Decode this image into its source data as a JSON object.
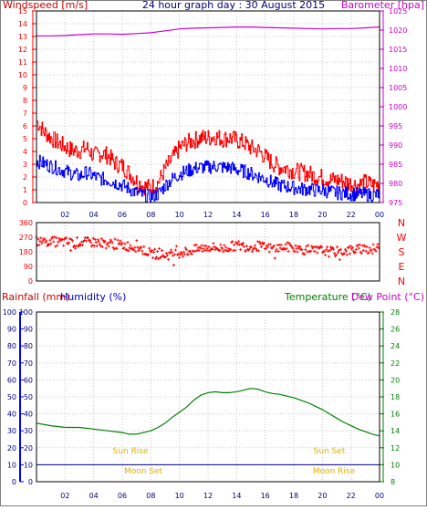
{
  "header": {
    "windspeed_label": "Windspeed [m/s]",
    "graph_title": "24 hour graph day : 30 August 2015",
    "barometer_label": "Barometer [hpa]"
  },
  "colors": {
    "wind_gust": "#ff0000",
    "wind_avg": "#0000ff",
    "barometer": "#cc00cc",
    "wind_dir": "#ff0000",
    "rain": "#0000ff",
    "humidity": "#0000ff",
    "temperature": "#008000",
    "dew_point": "#008000",
    "sun_moon": "#e0b000",
    "axis_dark": "#000000",
    "rainfall_title": "#cc0000"
  },
  "lower_panel": {
    "rainfall_label": "Rainfall (mm)",
    "humidity_label": "Humidity (%)",
    "temperature_label": "Temperature (°C)",
    "dew_point_label": "Dew Point (°C)",
    "sun_rise": "Sun Rise",
    "sun_set": "Sun Set",
    "moon_set": "Moon Set",
    "moon_rise": "Moon Rise"
  },
  "chart_data": [
    {
      "type": "line",
      "id": "wind",
      "x_labels": [
        "02",
        "04",
        "06",
        "08",
        "10",
        "12",
        "14",
        "16",
        "18",
        "20",
        "22",
        "00"
      ],
      "ylim_left": [
        0,
        15
      ],
      "y_ticks_left": [
        0,
        1,
        2,
        3,
        4,
        5,
        6,
        7,
        8,
        9,
        10,
        11,
        12,
        13,
        14,
        15
      ],
      "ylim_right": [
        975,
        1025
      ],
      "y_ticks_right": [
        975,
        980,
        985,
        990,
        995,
        1000,
        1005,
        1010,
        1015,
        1020,
        1025
      ],
      "grid": true,
      "series": [
        {
          "name": "Windspeed [m/s]",
          "axis": "left",
          "style": "gust",
          "x": [
            0,
            0.5,
            1,
            1.5,
            2,
            2.5,
            3,
            3.5,
            4,
            4.5,
            5,
            5.5,
            6,
            6.5,
            7,
            7.5,
            8,
            8.5,
            9,
            9.5,
            10,
            10.5,
            11,
            11.5,
            12,
            12.5,
            13,
            13.5,
            14,
            14.5,
            15,
            15.5,
            16,
            16.5,
            17,
            17.5,
            18,
            18.5,
            19,
            19.5,
            20,
            20.5,
            21,
            21.5,
            22,
            22.5,
            23,
            23.5,
            24
          ],
          "values": [
            6.3,
            5.5,
            5.0,
            4.6,
            4.3,
            4.0,
            4.0,
            4.2,
            3.6,
            3.8,
            3.6,
            3.0,
            2.8,
            2.2,
            1.6,
            1.2,
            1.1,
            1.5,
            2.6,
            3.4,
            4.2,
            4.6,
            4.8,
            5.0,
            5.0,
            5.1,
            4.9,
            5.0,
            4.8,
            4.6,
            4.2,
            4.0,
            3.5,
            3.0,
            2.7,
            2.6,
            2.4,
            2.3,
            2.2,
            2.0,
            1.9,
            1.7,
            1.7,
            1.6,
            1.4,
            1.3,
            1.5,
            1.3,
            1.4
          ]
        },
        {
          "name": "Windspeed [m/s]",
          "axis": "left",
          "style": "average",
          "x": [
            0,
            0.5,
            1,
            1.5,
            2,
            2.5,
            3,
            3.5,
            4,
            4.5,
            5,
            5.5,
            6,
            6.5,
            7,
            7.5,
            8,
            8.5,
            9,
            9.5,
            10,
            10.5,
            11,
            11.5,
            12,
            12.5,
            13,
            13.5,
            14,
            14.5,
            15,
            15.5,
            16,
            16.5,
            17,
            17.5,
            18,
            18.5,
            19,
            19.5,
            20,
            20.5,
            21,
            21.5,
            22,
            22.5,
            23,
            23.5,
            24
          ],
          "values": [
            3.2,
            3.0,
            2.8,
            2.6,
            2.4,
            2.2,
            2.0,
            2.3,
            2.0,
            1.8,
            1.7,
            1.5,
            1.3,
            1.0,
            0.7,
            0.5,
            0.4,
            0.6,
            1.3,
            1.8,
            2.2,
            2.4,
            2.6,
            2.7,
            2.7,
            2.8,
            2.7,
            2.7,
            2.5,
            2.4,
            2.2,
            2.0,
            1.8,
            1.5,
            1.3,
            1.2,
            1.1,
            1.0,
            1.0,
            0.9,
            0.9,
            0.8,
            0.7,
            0.7,
            0.6,
            0.6,
            0.6,
            0.5,
            0.6
          ]
        },
        {
          "name": "Barometer [hpa]",
          "axis": "right",
          "style": "barometer",
          "x": [
            0,
            1,
            2,
            3,
            4,
            5,
            6,
            7,
            8,
            9,
            10,
            11,
            12,
            13,
            14,
            15,
            16,
            17,
            18,
            19,
            20,
            21,
            22,
            23,
            24
          ],
          "values": [
            1018.5,
            1018.5,
            1018.6,
            1018.8,
            1019.0,
            1019.0,
            1018.9,
            1019.1,
            1019.3,
            1019.8,
            1020.3,
            1020.5,
            1020.6,
            1020.7,
            1020.8,
            1020.8,
            1020.7,
            1020.6,
            1020.5,
            1020.4,
            1020.3,
            1020.4,
            1020.4,
            1020.6,
            1020.8
          ]
        }
      ]
    },
    {
      "type": "scatter",
      "id": "wind_direction",
      "x_labels": [
        "02",
        "04",
        "06",
        "08",
        "10",
        "12",
        "14",
        "16",
        "18",
        "20",
        "22",
        "00"
      ],
      "ylim": [
        0,
        360
      ],
      "y_ticks": [
        0,
        90,
        180,
        270,
        360
      ],
      "right_labels": [
        "N",
        "W",
        "S",
        "E",
        "N"
      ],
      "grid": true,
      "x": [
        0,
        0.5,
        1,
        1.5,
        2,
        2.5,
        3,
        3.5,
        4,
        4.5,
        5,
        5.5,
        6,
        6.5,
        7,
        7.5,
        8,
        8.5,
        9,
        9.5,
        10,
        10.5,
        11,
        11.5,
        12,
        12.5,
        13,
        13.5,
        14,
        14.5,
        15,
        15.5,
        16,
        16.5,
        17,
        17.5,
        18,
        18.5,
        19,
        19.5,
        20,
        20.5,
        21,
        21.5,
        22,
        22.5,
        23,
        23.5,
        24
      ],
      "values": [
        245,
        240,
        245,
        240,
        240,
        235,
        240,
        238,
        240,
        235,
        230,
        225,
        220,
        215,
        210,
        190,
        170,
        165,
        160,
        165,
        175,
        180,
        190,
        200,
        210,
        205,
        200,
        210,
        220,
        215,
        210,
        215,
        205,
        200,
        205,
        210,
        200,
        195,
        190,
        185,
        190,
        180,
        180,
        185,
        190,
        195,
        200,
        195,
        200
      ]
    },
    {
      "type": "line",
      "id": "lower",
      "x_labels": [
        "02",
        "04",
        "06",
        "08",
        "10",
        "12",
        "14",
        "16",
        "18",
        "20",
        "22",
        "00"
      ],
      "ylim_left": [
        0,
        100
      ],
      "y_ticks_left": [
        0,
        10,
        20,
        30,
        40,
        50,
        60,
        70,
        80,
        90,
        100
      ],
      "ylim_right": [
        8,
        28
      ],
      "y_ticks_right": [
        8,
        10,
        12,
        14,
        16,
        18,
        20,
        22,
        24,
        26,
        28
      ],
      "grid": true,
      "series": [
        {
          "name": "Temperature (°C)",
          "axis": "right",
          "style": "temperature",
          "x": [
            0,
            1,
            2,
            3,
            4,
            5,
            6,
            6.5,
            7,
            7.5,
            8,
            8.5,
            9,
            9.5,
            10,
            10.5,
            11,
            11.5,
            12,
            12.5,
            13,
            13.5,
            14,
            14.5,
            15,
            15.5,
            16,
            16.5,
            17,
            17.5,
            18,
            18.5,
            19,
            19.5,
            20,
            20.5,
            21,
            21.5,
            22,
            22.5,
            23,
            23.5,
            24
          ],
          "values": [
            14.9,
            14.6,
            14.4,
            14.4,
            14.2,
            14.0,
            13.8,
            13.6,
            13.6,
            13.8,
            14.0,
            14.4,
            14.9,
            15.6,
            16.2,
            16.8,
            17.6,
            18.2,
            18.5,
            18.6,
            18.5,
            18.5,
            18.6,
            18.8,
            19.0,
            18.9,
            18.6,
            18.4,
            18.3,
            18.1,
            17.9,
            17.6,
            17.3,
            16.9,
            16.5,
            16.0,
            15.5,
            15.0,
            14.6,
            14.2,
            13.9,
            13.6,
            13.4
          ]
        },
        {
          "name": "Rainfall (mm)",
          "axis": "left",
          "style": "rain",
          "x": [
            0,
            24
          ],
          "values": [
            0,
            0
          ]
        }
      ],
      "sun_rise_hour": 6.1,
      "sun_set_hour": 20.1,
      "moon_set_hour": 7.5,
      "moon_rise_hour": 21.1
    }
  ]
}
